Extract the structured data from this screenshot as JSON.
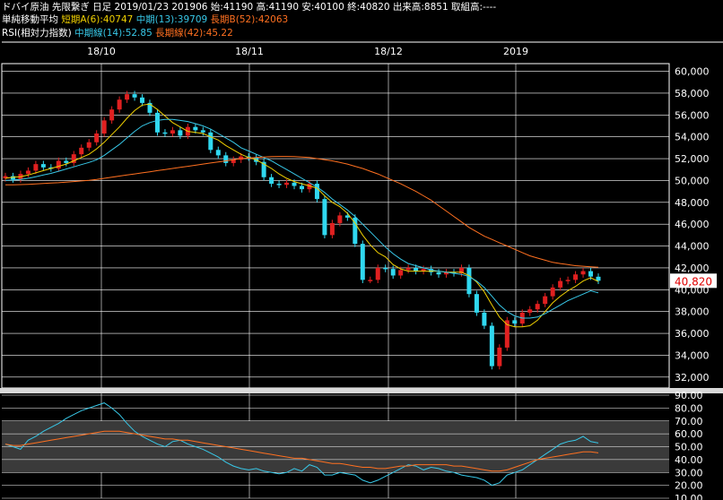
{
  "header": {
    "title": "ドバイ原油 先限繋ぎ 日足 2019/01/23 201906 始:41190 高:41190 安:40100 終:40820 出来高:8851 取組高:----",
    "ma_label": "単純移動平均",
    "ma_short": "短期A(6):40747",
    "ma_mid": "中期(13):39709",
    "ma_long": "長期B(52):42063",
    "rsi_label": "RSI(相対力指数)",
    "rsi_mid": "中期線(14):52.85",
    "rsi_long": "長期線(42):45.22"
  },
  "colors": {
    "up": "#e02020",
    "down": "#30d8f0",
    "ma_short": "#f0d000",
    "ma_mid": "#38c8e8",
    "ma_long": "#ff7020",
    "grid": "#ffffff",
    "price_tag_bg": "#ffffff",
    "price_tag_fg": "#e00000"
  },
  "chart_data": [
    {
      "type": "candlestick",
      "title": "ドバイ原油 先限繋ぎ 日足",
      "x_ticks": [
        "18/10",
        "18/11",
        "18/12",
        "2019"
      ],
      "y_ticks": [
        "32,000",
        "34,000",
        "36,000",
        "38,000",
        "40,000",
        "42,000",
        "44,000",
        "46,000",
        "48,000",
        "50,000",
        "52,000",
        "54,000",
        "56,000",
        "58,000",
        "60,000"
      ],
      "ylim": [
        31000,
        60700
      ],
      "last_price_label": "40,820",
      "closes": [
        50400,
        50100,
        50600,
        50900,
        51500,
        51200,
        51100,
        51800,
        51600,
        52400,
        53000,
        53500,
        54300,
        55500,
        56500,
        57400,
        57900,
        57600,
        57100,
        56200,
        54400,
        54300,
        54600,
        54100,
        54900,
        54600,
        54400,
        52800,
        52300,
        51600,
        51900,
        52200,
        52100,
        51700,
        50300,
        49700,
        49600,
        49800,
        49500,
        49200,
        49700,
        48300,
        45000,
        46100,
        46800,
        46600,
        44200,
        40900,
        40900,
        42000,
        41900,
        41300,
        41800,
        42000,
        41700,
        41900,
        41600,
        41400,
        41600,
        41500,
        42000,
        39600,
        37900,
        36700,
        33000,
        34700,
        37200,
        36900,
        37900,
        38200,
        38700,
        39400,
        40200,
        40800,
        40900,
        41400,
        41700,
        41200,
        40820
      ],
      "opens": [
        50200,
        50400,
        50100,
        50600,
        50900,
        51500,
        51200,
        51100,
        51800,
        51600,
        52400,
        53000,
        53500,
        54300,
        55500,
        56500,
        57400,
        57900,
        57600,
        57100,
        56200,
        54400,
        54300,
        54600,
        54100,
        54900,
        54600,
        54400,
        52800,
        52300,
        51600,
        51900,
        52200,
        52100,
        51700,
        50300,
        49700,
        49600,
        49800,
        49500,
        49200,
        49700,
        48300,
        45000,
        46100,
        46800,
        46600,
        44200,
        40900,
        40900,
        42000,
        41900,
        41300,
        41800,
        42000,
        41700,
        41900,
        41600,
        41400,
        41600,
        41500,
        42000,
        39600,
        37900,
        36700,
        33000,
        34700,
        37200,
        36900,
        37900,
        38200,
        38700,
        39400,
        40200,
        40800,
        40900,
        41400,
        41700,
        41190
      ],
      "series": [
        {
          "name": "短期A(6)",
          "values": [
            50200,
            50300,
            50350,
            50500,
            50700,
            50900,
            51100,
            51300,
            51500,
            51800,
            52100,
            52400,
            52900,
            53500,
            54200,
            54900,
            55700,
            56400,
            56900,
            57000,
            56500,
            55900,
            55300,
            54900,
            54500,
            54400,
            54300,
            54000,
            53700,
            53200,
            52800,
            52400,
            52100,
            51900,
            51500,
            51100,
            50600,
            50200,
            49900,
            49700,
            49500,
            49300,
            48600,
            48000,
            47600,
            47000,
            46100,
            45000,
            44100,
            43400,
            43000,
            42300,
            41900,
            41700,
            41700,
            41700,
            41700,
            41700,
            41600,
            41600,
            41600,
            41300,
            40700,
            39800,
            38600,
            37500,
            36800,
            36600,
            36600,
            36700,
            37200,
            38000,
            38800,
            39400,
            39900,
            40300,
            40800,
            41100,
            40747
          ]
        },
        {
          "name": "中期(13)",
          "values": [
            50000,
            50050,
            50100,
            50200,
            50350,
            50500,
            50650,
            50850,
            51050,
            51250,
            51450,
            51650,
            51900,
            52300,
            52800,
            53300,
            53900,
            54500,
            55000,
            55300,
            55500,
            55600,
            55600,
            55500,
            55400,
            55200,
            55000,
            54700,
            54300,
            53900,
            53500,
            53000,
            52700,
            52400,
            52100,
            51800,
            51400,
            51000,
            50600,
            50200,
            49800,
            49400,
            48900,
            48300,
            47800,
            47300,
            46700,
            46000,
            45300,
            44600,
            43900,
            43300,
            42800,
            42400,
            42200,
            42000,
            41800,
            41700,
            41600,
            41500,
            41400,
            41200,
            40800,
            40200,
            39400,
            38600,
            38000,
            37600,
            37400,
            37400,
            37500,
            37800,
            38200,
            38600,
            39000,
            39300,
            39600,
            39900,
            39709
          ]
        },
        {
          "name": "長期B(52)",
          "values": [
            49600,
            49600,
            49620,
            49650,
            49680,
            49720,
            49760,
            49800,
            49850,
            49900,
            49960,
            50020,
            50100,
            50200,
            50300,
            50400,
            50500,
            50600,
            50700,
            50800,
            50900,
            51000,
            51100,
            51200,
            51300,
            51400,
            51500,
            51600,
            51700,
            51800,
            51900,
            52000,
            52050,
            52100,
            52150,
            52180,
            52200,
            52200,
            52180,
            52150,
            52100,
            52000,
            51900,
            51800,
            51650,
            51500,
            51300,
            51100,
            50850,
            50600,
            50300,
            50000,
            49700,
            49350,
            49000,
            48600,
            48200,
            47700,
            47200,
            46700,
            46200,
            45700,
            45300,
            44900,
            44600,
            44300,
            44000,
            43700,
            43400,
            43100,
            42900,
            42700,
            42500,
            42400,
            42300,
            42200,
            42150,
            42100,
            42063
          ]
        }
      ]
    },
    {
      "type": "line",
      "title": "RSI(相対力指数)",
      "y_ticks": [
        "10.00",
        "20.00",
        "30.00",
        "40.00",
        "50.00",
        "60.00",
        "70.00",
        "80.00",
        "90.00"
      ],
      "ylim": [
        10,
        90
      ],
      "series": [
        {
          "name": "中期線(14)",
          "values": [
            52,
            50,
            48,
            55,
            58,
            62,
            65,
            68,
            72,
            75,
            78,
            80,
            82,
            84,
            80,
            75,
            68,
            62,
            58,
            55,
            52,
            50,
            54,
            55,
            52,
            50,
            48,
            45,
            42,
            38,
            35,
            33,
            32,
            33,
            31,
            30,
            29,
            30,
            33,
            31,
            36,
            34,
            28,
            28,
            30,
            29,
            28,
            24,
            22,
            24,
            27,
            30,
            33,
            36,
            35,
            32,
            34,
            33,
            31,
            30,
            28,
            27,
            26,
            24,
            20,
            22,
            28,
            30,
            32,
            36,
            40,
            44,
            48,
            52,
            54,
            55,
            58,
            54,
            52.85
          ]
        },
        {
          "name": "長期線(42)",
          "values": [
            52,
            51,
            51,
            52,
            53,
            54,
            55,
            56,
            57,
            58,
            59,
            60,
            61,
            62,
            62,
            62,
            61,
            60,
            59,
            58,
            57,
            56,
            56,
            55,
            55,
            54,
            53,
            52,
            51,
            50,
            49,
            48,
            47,
            46,
            45,
            44,
            43,
            42,
            41,
            41,
            40,
            39,
            38,
            37,
            37,
            36,
            35,
            34,
            34,
            33,
            33,
            34,
            35,
            35,
            36,
            36,
            36,
            36,
            36,
            35,
            35,
            34,
            33,
            32,
            31,
            31,
            32,
            34,
            36,
            38,
            40,
            41,
            42,
            43,
            44,
            45,
            46,
            46,
            45.22
          ]
        }
      ]
    }
  ]
}
